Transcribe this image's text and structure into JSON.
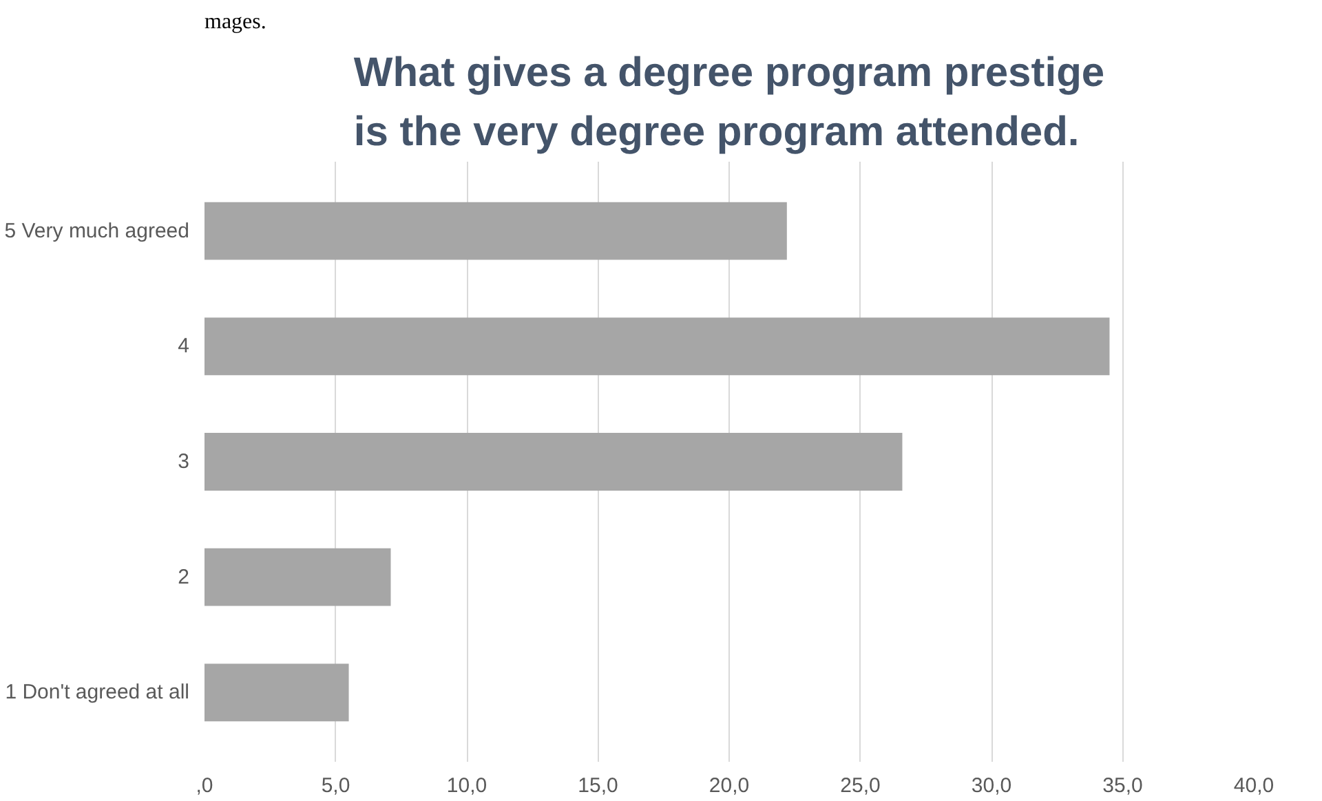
{
  "chart_data": {
    "type": "bar",
    "orientation": "horizontal",
    "title": "What gives a degree program prestige is the very degree program attended.",
    "annotations": [
      "mages."
    ],
    "categories": [
      "5 Very much agreed",
      "4",
      "3",
      "2",
      "1 Don't agreed at all"
    ],
    "values": [
      22.2,
      34.5,
      26.6,
      7.1,
      5.5
    ],
    "color": "#a6a6a6",
    "xlim": [
      0,
      40
    ],
    "xticks": [
      {
        "value": 0,
        "label": ",0"
      },
      {
        "value": 5,
        "label": "5,0"
      },
      {
        "value": 10,
        "label": "10,0"
      },
      {
        "value": 15,
        "label": "15,0"
      },
      {
        "value": 20,
        "label": "20,0"
      },
      {
        "value": 25,
        "label": "25,0"
      },
      {
        "value": 30,
        "label": "30,0"
      },
      {
        "value": 35,
        "label": "35,0"
      },
      {
        "value": 40,
        "label": "40,0"
      }
    ],
    "grid": "x"
  }
}
